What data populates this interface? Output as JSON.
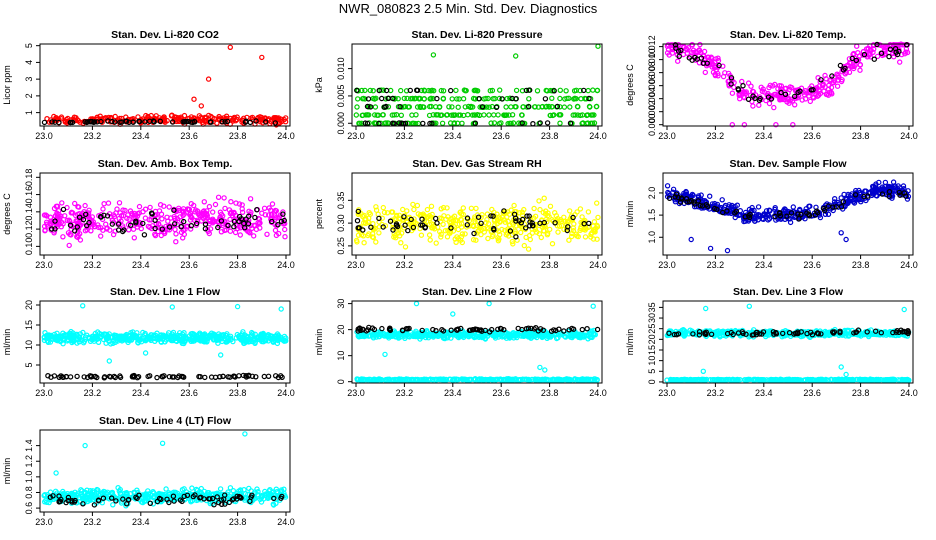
{
  "figure_title": "NWR_080823  2.5 Min. Std. Dev. Diagnostics",
  "chart_data": [
    {
      "type": "scatter",
      "title": "Stan. Dev. Li-820 CO2",
      "ylabel": "Licor ppm",
      "xlim": [
        23.0,
        24.0
      ],
      "ylim": [
        0.2,
        5.1
      ],
      "xticks": [
        "23.0",
        "23.2",
        "23.4",
        "23.6",
        "23.8",
        "24.0"
      ],
      "yticks": [
        1,
        2,
        3,
        4,
        5
      ],
      "ytick_labels": [
        "1",
        "2",
        "3",
        "4",
        "5"
      ],
      "series": [
        {
          "name": "main",
          "color": "#ff0000",
          "base": [
            [
              23.0,
              0.55
            ],
            [
              23.5,
              0.6
            ],
            [
              24.0,
              0.55
            ]
          ],
          "spread": 0.25,
          "n": 260
        },
        {
          "name": "ref",
          "color": "#000000",
          "base": [
            [
              23.0,
              0.45
            ],
            [
              24.0,
              0.45
            ]
          ],
          "spread": 0.05,
          "n": 55
        }
      ],
      "outliers": [
        {
          "x": 23.62,
          "y": 1.8,
          "color": "#ff0000"
        },
        {
          "x": 23.68,
          "y": 3.0,
          "color": "#ff0000"
        },
        {
          "x": 23.77,
          "y": 4.9,
          "color": "#ff0000"
        },
        {
          "x": 23.9,
          "y": 4.3,
          "color": "#ff0000"
        },
        {
          "x": 23.65,
          "y": 1.4,
          "color": "#ff0000"
        }
      ]
    },
    {
      "type": "scatter",
      "title": "Stan. Dev. Li-820 Pressure",
      "ylabel": "kPa",
      "xlim": [
        23.0,
        24.0
      ],
      "ylim": [
        -0.0005,
        0.0145
      ],
      "xticks": [
        "23.0",
        "23.2",
        "23.4",
        "23.6",
        "23.8",
        "24.0"
      ],
      "yticks": [
        0.0,
        0.005,
        0.01
      ],
      "ytick_labels": [
        "0.000",
        "0.005",
        "0.010"
      ],
      "series": [
        {
          "name": "main",
          "color": "#00cc00",
          "levels": [
            0.0,
            0.0015,
            0.003,
            0.0045,
            0.006
          ],
          "n": 320
        },
        {
          "name": "ref",
          "color": "#000000",
          "levels": [
            0.0,
            0.003,
            0.0045,
            0.006
          ],
          "n": 50
        }
      ],
      "outliers": [
        {
          "x": 23.32,
          "y": 0.0125,
          "color": "#00cc00"
        },
        {
          "x": 23.66,
          "y": 0.0123,
          "color": "#00cc00"
        },
        {
          "x": 24.0,
          "y": 0.0141,
          "color": "#00cc00"
        }
      ]
    },
    {
      "type": "scatter",
      "title": "Stan. Dev. Li-820 Temp.",
      "ylabel": "degrees C",
      "xlim": [
        23.0,
        24.0
      ],
      "ylim": [
        -0.0002,
        0.0124
      ],
      "xticks": [
        "23.0",
        "23.2",
        "23.4",
        "23.6",
        "23.8",
        "24.0"
      ],
      "yticks": [
        0.0,
        0.002,
        0.004,
        0.006,
        0.008,
        0.01,
        0.012
      ],
      "ytick_labels": [
        "0.000",
        "0.002",
        "0.004",
        "0.006",
        "0.008",
        "0.010",
        "0.012"
      ],
      "series": [
        {
          "name": "main",
          "color": "#ff00ff",
          "base": [
            [
              23.0,
              0.0118
            ],
            [
              23.1,
              0.0115
            ],
            [
              23.2,
              0.009
            ],
            [
              23.28,
              0.006
            ],
            [
              23.35,
              0.0045
            ],
            [
              23.5,
              0.0045
            ],
            [
              23.6,
              0.005
            ],
            [
              23.68,
              0.006
            ],
            [
              23.76,
              0.0095
            ],
            [
              23.85,
              0.0115
            ],
            [
              24.0,
              0.012
            ]
          ],
          "spread": 0.0018,
          "n": 360
        },
        {
          "name": "ref",
          "color": "#000000",
          "base": [
            [
              23.0,
              0.0118
            ],
            [
              23.2,
              0.009
            ],
            [
              23.35,
              0.004
            ],
            [
              23.6,
              0.005
            ],
            [
              23.8,
              0.011
            ],
            [
              24.0,
              0.0118
            ]
          ],
          "spread": 0.0012,
          "n": 50
        }
      ],
      "outliers": [
        {
          "x": 23.27,
          "y": 0.0,
          "color": "#ff00ff"
        },
        {
          "x": 23.32,
          "y": 0.0,
          "color": "#ff00ff"
        },
        {
          "x": 23.45,
          "y": 0.0,
          "color": "#ff00ff"
        },
        {
          "x": 23.52,
          "y": 0.0,
          "color": "#ff00ff"
        }
      ]
    },
    {
      "type": "scatter",
      "title": "Stan. Dev. Amb. Box Temp.",
      "ylabel": "degrees C",
      "xlim": [
        23.0,
        24.0
      ],
      "ylim": [
        0.09,
        0.185
      ],
      "xticks": [
        "23.0",
        "23.2",
        "23.4",
        "23.6",
        "23.8",
        "24.0"
      ],
      "yticks": [
        0.1,
        0.12,
        0.14,
        0.16,
        0.18
      ],
      "ytick_labels": [
        "0.10",
        "0.12",
        "0.14",
        "0.16",
        "0.18"
      ],
      "series": [
        {
          "name": "main",
          "color": "#ff00ff",
          "base": [
            [
              23.0,
              0.13
            ],
            [
              24.0,
              0.13
            ]
          ],
          "spread": 0.022,
          "n": 420
        },
        {
          "name": "ref",
          "color": "#000000",
          "base": [
            [
              23.0,
              0.127
            ],
            [
              24.0,
              0.127
            ]
          ],
          "spread": 0.015,
          "n": 60
        }
      ],
      "outliers": []
    },
    {
      "type": "scatter",
      "title": "Stan. Dev. Gas Stream RH",
      "ylabel": "percent",
      "xlim": [
        23.0,
        24.0
      ],
      "ylim": [
        0.23,
        0.41
      ],
      "xticks": [
        "23.0",
        "23.2",
        "23.4",
        "23.6",
        "23.8",
        "24.0"
      ],
      "yticks": [
        0.25,
        0.3,
        0.35
      ],
      "ytick_labels": [
        "0.25",
        "0.30",
        "0.35"
      ],
      "series": [
        {
          "name": "main",
          "color": "#ffff00",
          "base": [
            [
              23.0,
              0.3
            ],
            [
              24.0,
              0.3
            ]
          ],
          "spread": 0.045,
          "n": 420
        },
        {
          "name": "ref",
          "color": "#000000",
          "base": [
            [
              23.0,
              0.3
            ],
            [
              24.0,
              0.3
            ]
          ],
          "spread": 0.03,
          "n": 60
        }
      ],
      "outliers": []
    },
    {
      "type": "scatter",
      "title": "Stan. Dev. Sample Flow",
      "ylabel": "ml/min",
      "xlim": [
        23.0,
        24.0
      ],
      "ylim": [
        0.6,
        2.45
      ],
      "xticks": [
        "23.0",
        "23.2",
        "23.4",
        "23.6",
        "23.8",
        "24.0"
      ],
      "yticks": [
        1.0,
        1.5,
        2.0
      ],
      "ytick_labels": [
        "1.0",
        "1.5",
        "2.0"
      ],
      "series": [
        {
          "name": "main",
          "color": "#0000cc",
          "base": [
            [
              23.0,
              2.0
            ],
            [
              23.15,
              1.8
            ],
            [
              23.3,
              1.5
            ],
            [
              23.5,
              1.5
            ],
            [
              23.65,
              1.6
            ],
            [
              23.75,
              1.85
            ],
            [
              23.85,
              2.05
            ],
            [
              24.0,
              2.05
            ]
          ],
          "spread": 0.17,
          "n": 420
        },
        {
          "name": "ref",
          "color": "#000000",
          "base": [
            [
              23.0,
              1.95
            ],
            [
              23.3,
              1.5
            ],
            [
              23.6,
              1.5
            ],
            [
              23.8,
              1.95
            ],
            [
              24.0,
              2.0
            ]
          ],
          "spread": 0.1,
          "n": 60
        }
      ],
      "outliers": [
        {
          "x": 23.18,
          "y": 0.75,
          "color": "#0000cc"
        },
        {
          "x": 23.25,
          "y": 0.7,
          "color": "#0000cc"
        },
        {
          "x": 23.72,
          "y": 1.1,
          "color": "#0000cc"
        },
        {
          "x": 23.74,
          "y": 0.95,
          "color": "#0000cc"
        },
        {
          "x": 23.1,
          "y": 0.95,
          "color": "#0000cc"
        }
      ]
    },
    {
      "type": "scatter",
      "title": "Stan. Dev. Line 1 Flow",
      "ylabel": "ml/min",
      "xlim": [
        23.0,
        24.0
      ],
      "ylim": [
        0.5,
        21
      ],
      "xticks": [
        "23.0",
        "23.2",
        "23.4",
        "23.6",
        "23.8",
        "24.0"
      ],
      "yticks": [
        5,
        10,
        15,
        20
      ],
      "ytick_labels": [
        "5",
        "10",
        "15",
        "20"
      ],
      "series": [
        {
          "name": "main",
          "color": "#00ffff",
          "base": [
            [
              23.0,
              11.8
            ],
            [
              24.0,
              11.8
            ]
          ],
          "spread": 1.4,
          "n": 500
        },
        {
          "name": "ref",
          "color": "#000000",
          "base": [
            [
              23.0,
              2.1
            ],
            [
              24.0,
              2.1
            ]
          ],
          "spread": 0.3,
          "n": 80
        }
      ],
      "outliers": [
        {
          "x": 23.16,
          "y": 19.8,
          "color": "#00ffff"
        },
        {
          "x": 23.53,
          "y": 19.5,
          "color": "#00ffff"
        },
        {
          "x": 23.8,
          "y": 19.6,
          "color": "#00ffff"
        },
        {
          "x": 23.98,
          "y": 19.0,
          "color": "#00ffff"
        },
        {
          "x": 23.27,
          "y": 6.0,
          "color": "#00ffff"
        },
        {
          "x": 23.42,
          "y": 8.0,
          "color": "#00ffff"
        },
        {
          "x": 23.73,
          "y": 7.5,
          "color": "#00ffff"
        }
      ]
    },
    {
      "type": "scatter",
      "title": "Stan. Dev. Line 2 Flow",
      "ylabel": "ml/min",
      "xlim": [
        23.0,
        24.0
      ],
      "ylim": [
        -0.5,
        31
      ],
      "xticks": [
        "23.0",
        "23.2",
        "23.4",
        "23.6",
        "23.8",
        "24.0"
      ],
      "yticks": [
        0,
        10,
        20,
        30
      ],
      "ytick_labels": [
        "0",
        "10",
        "20",
        "30"
      ],
      "series": [
        {
          "name": "main",
          "color": "#00ffff",
          "base": [
            [
              23.0,
              18.0
            ],
            [
              24.0,
              18.0
            ]
          ],
          "spread": 1.5,
          "n": 450
        },
        {
          "name": "low",
          "color": "#00ffff",
          "base": [
            [
              23.0,
              0.8
            ],
            [
              24.0,
              0.8
            ]
          ],
          "spread": 0.3,
          "n": 320
        },
        {
          "name": "ref",
          "color": "#000000",
          "base": [
            [
              23.0,
              20.0
            ],
            [
              24.0,
              20.0
            ]
          ],
          "spread": 0.8,
          "n": 70
        }
      ],
      "outliers": [
        {
          "x": 23.12,
          "y": 10.5,
          "color": "#00ffff"
        },
        {
          "x": 23.25,
          "y": 30.0,
          "color": "#00ffff"
        },
        {
          "x": 23.4,
          "y": 26.0,
          "color": "#00ffff"
        },
        {
          "x": 23.76,
          "y": 5.5,
          "color": "#00ffff"
        },
        {
          "x": 23.78,
          "y": 4.5,
          "color": "#00ffff"
        },
        {
          "x": 23.98,
          "y": 29.0,
          "color": "#00ffff"
        },
        {
          "x": 23.55,
          "y": 30.0,
          "color": "#00ffff"
        }
      ]
    },
    {
      "type": "scatter",
      "title": "Stan. Dev. Line 3 Flow",
      "ylabel": "ml/min",
      "xlim": [
        23.0,
        24.0
      ],
      "ylim": [
        -0.5,
        38
      ],
      "xticks": [
        "23.0",
        "23.2",
        "23.4",
        "23.6",
        "23.8",
        "24.0"
      ],
      "yticks": [
        0,
        5,
        10,
        15,
        20,
        25,
        30,
        35
      ],
      "ytick_labels": [
        "0",
        "5",
        "10",
        "15",
        "20",
        "25",
        "30",
        "35"
      ],
      "series": [
        {
          "name": "main",
          "color": "#00ffff",
          "base": [
            [
              23.0,
              22.8
            ],
            [
              24.0,
              22.8
            ]
          ],
          "spread": 1.5,
          "n": 450
        },
        {
          "name": "low",
          "color": "#00ffff",
          "base": [
            [
              23.0,
              1.0
            ],
            [
              24.0,
              1.0
            ]
          ],
          "spread": 0.3,
          "n": 320
        },
        {
          "name": "ref",
          "color": "#000000",
          "base": [
            [
              23.0,
              22.5
            ],
            [
              24.0,
              23.5
            ]
          ],
          "spread": 1.0,
          "n": 70
        }
      ],
      "outliers": [
        {
          "x": 23.15,
          "y": 5.0,
          "color": "#00ffff"
        },
        {
          "x": 23.72,
          "y": 7.0,
          "color": "#00ffff"
        },
        {
          "x": 23.74,
          "y": 3.5,
          "color": "#00ffff"
        },
        {
          "x": 23.16,
          "y": 34.5,
          "color": "#00ffff"
        },
        {
          "x": 23.34,
          "y": 35.5,
          "color": "#00ffff"
        },
        {
          "x": 23.98,
          "y": 34.0,
          "color": "#00ffff"
        }
      ]
    },
    {
      "type": "scatter",
      "title": "Stan. Dev. Line 4 (LT) Flow",
      "ylabel": "ml/min",
      "xlim": [
        23.0,
        24.0
      ],
      "ylim": [
        0.55,
        1.6
      ],
      "xticks": [
        "23.0",
        "23.2",
        "23.4",
        "23.6",
        "23.8",
        "24.0"
      ],
      "yticks": [
        0.6,
        0.8,
        1.0,
        1.2,
        1.4
      ],
      "ytick_labels": [
        "0.6",
        "0.8",
        "1.0",
        "1.2",
        "1.4"
      ],
      "series": [
        {
          "name": "main",
          "color": "#00ffff",
          "base": [
            [
              23.0,
              0.75
            ],
            [
              24.0,
              0.75
            ]
          ],
          "spread": 0.1,
          "n": 450
        },
        {
          "name": "ref",
          "color": "#000000",
          "base": [
            [
              23.0,
              0.7
            ],
            [
              24.0,
              0.72
            ]
          ],
          "spread": 0.08,
          "n": 70
        }
      ],
      "outliers": [
        {
          "x": 23.17,
          "y": 1.4,
          "color": "#00ffff"
        },
        {
          "x": 23.49,
          "y": 1.43,
          "color": "#00ffff"
        },
        {
          "x": 23.83,
          "y": 1.55,
          "color": "#00ffff"
        },
        {
          "x": 23.05,
          "y": 1.05,
          "color": "#00ffff"
        }
      ]
    }
  ]
}
